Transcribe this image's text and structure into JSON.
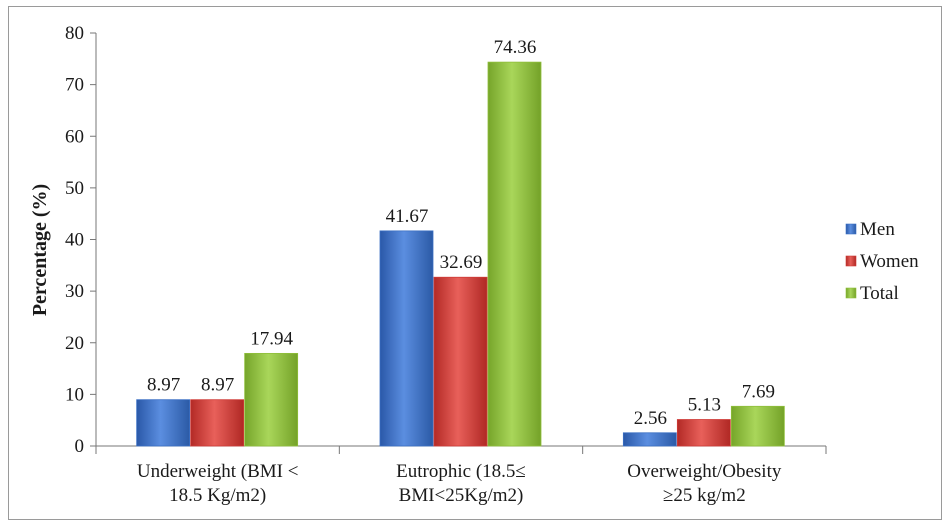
{
  "chart_data": {
    "type": "bar",
    "ylabel": "Percentage (%)",
    "ylim": [
      0,
      80
    ],
    "yticks": [
      0,
      10,
      20,
      30,
      40,
      50,
      60,
      70,
      80
    ],
    "grid": false,
    "legend_position": "right",
    "categories": [
      [
        "Underweight (BMI <",
        "18.5 Kg/m2)"
      ],
      [
        "Eutrophic (18.5≤",
        "BMI<25Kg/m2)"
      ],
      [
        "Overweight/Obesity",
        "≥25 kg/m2"
      ]
    ],
    "series": [
      {
        "name": "Men",
        "color": "#3a6fc4",
        "values": [
          8.97,
          41.67,
          2.56
        ],
        "labels": [
          "8.97",
          "41.67",
          "2.56"
        ]
      },
      {
        "name": "Women",
        "color": "#cf3a36",
        "values": [
          8.97,
          32.69,
          5.13
        ],
        "labels": [
          "8.97",
          "32.69",
          "5.13"
        ]
      },
      {
        "name": "Total",
        "color": "#8fbf3a",
        "values": [
          17.94,
          74.36,
          7.69
        ],
        "labels": [
          "17.94",
          "74.36",
          "7.69"
        ]
      }
    ]
  }
}
